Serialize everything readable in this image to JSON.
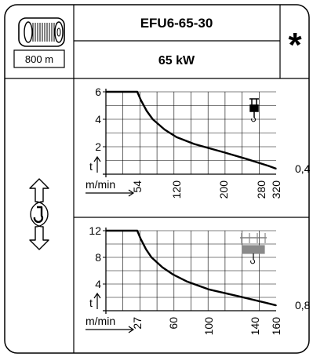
{
  "header": {
    "model": "EFU6-65-30",
    "power": "65 kW",
    "star": "*",
    "rope_length": "800 m"
  },
  "icons": {
    "drum": "cable-drum-icon",
    "hook": "hook-rotation-icon",
    "top_chart": "single-trolley-icon",
    "bottom_chart": "double-trolley-icon"
  },
  "chart_data": [
    {
      "type": "line",
      "title": "",
      "xlabel": "m/min",
      "ylabel": "t",
      "x": [
        54,
        60,
        70,
        80,
        100,
        120,
        150,
        200,
        250,
        300,
        320
      ],
      "values": [
        6,
        5.4,
        4.6,
        4.0,
        3.25,
        2.7,
        2.2,
        1.6,
        1.1,
        0.6,
        0.4
      ],
      "x_ticks": [
        "54",
        "120",
        "200",
        "280",
        "320"
      ],
      "y_ticks": [
        "6",
        "4",
        "2"
      ],
      "min_label": "0,4",
      "max_load": 6,
      "ylim": [
        0,
        6
      ],
      "xlim": [
        40,
        320
      ],
      "grid": true
    },
    {
      "type": "line",
      "title": "",
      "xlabel": "m/min",
      "ylabel": "t",
      "x": [
        27,
        30,
        35,
        40,
        50,
        60,
        75,
        100,
        125,
        150,
        160
      ],
      "values": [
        12,
        10.8,
        9.2,
        8.0,
        6.5,
        5.4,
        4.4,
        3.2,
        2.2,
        1.2,
        0.8
      ],
      "x_ticks": [
        "27",
        "60",
        "100",
        "140",
        "160"
      ],
      "y_ticks": [
        "12",
        "8",
        "4"
      ],
      "min_label": "0,8",
      "max_load": 12,
      "ylim": [
        0,
        12
      ],
      "xlim": [
        20,
        160
      ],
      "grid": true
    }
  ]
}
